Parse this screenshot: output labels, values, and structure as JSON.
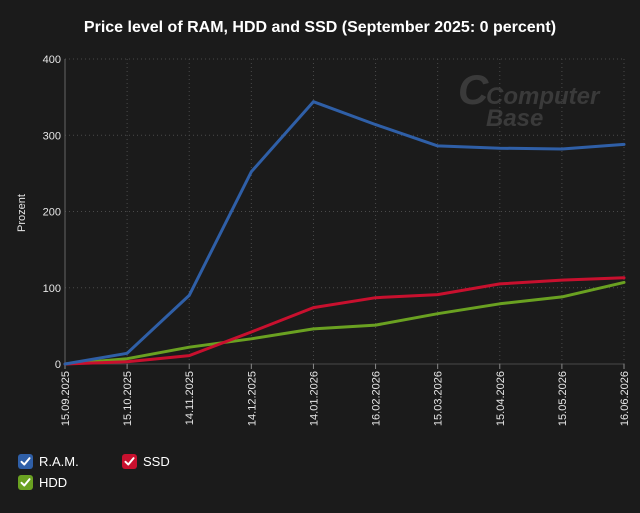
{
  "chart_data": {
    "type": "line",
    "title": "Price level of RAM, HDD and SSD (September 2025: 0 percent)",
    "ylabel": "Prozent",
    "xlabel": "",
    "ylim": [
      0,
      400
    ],
    "yticks": [
      "0",
      "100",
      "200",
      "300",
      "400"
    ],
    "yticks_values": [
      0,
      100,
      200,
      300,
      400
    ],
    "categories": [
      "15.09.2025",
      "15.10.2025",
      "14.11.2025",
      "14.12.2025",
      "14.01.2026",
      "16.02.2026",
      "15.03.2026",
      "15.04.2026",
      "15.05.2026",
      "16.06.2026"
    ],
    "grid": true,
    "legend_position": "bottom-left",
    "series": [
      {
        "name": "R.A.M.",
        "color": "#2f5fa7",
        "values": [
          0,
          14,
          90,
          252,
          344,
          314,
          286,
          283,
          282,
          288
        ]
      },
      {
        "name": "SSD",
        "color": "#c8102e",
        "values": [
          0,
          3,
          11,
          42,
          74,
          87,
          91,
          105,
          110,
          113
        ]
      },
      {
        "name": "HDD",
        "color": "#6aa121",
        "values": [
          0,
          7,
          22,
          33,
          46,
          51,
          66,
          79,
          88,
          107
        ]
      }
    ]
  },
  "watermark": {
    "line1": "Computer",
    "line2": "Base"
  }
}
